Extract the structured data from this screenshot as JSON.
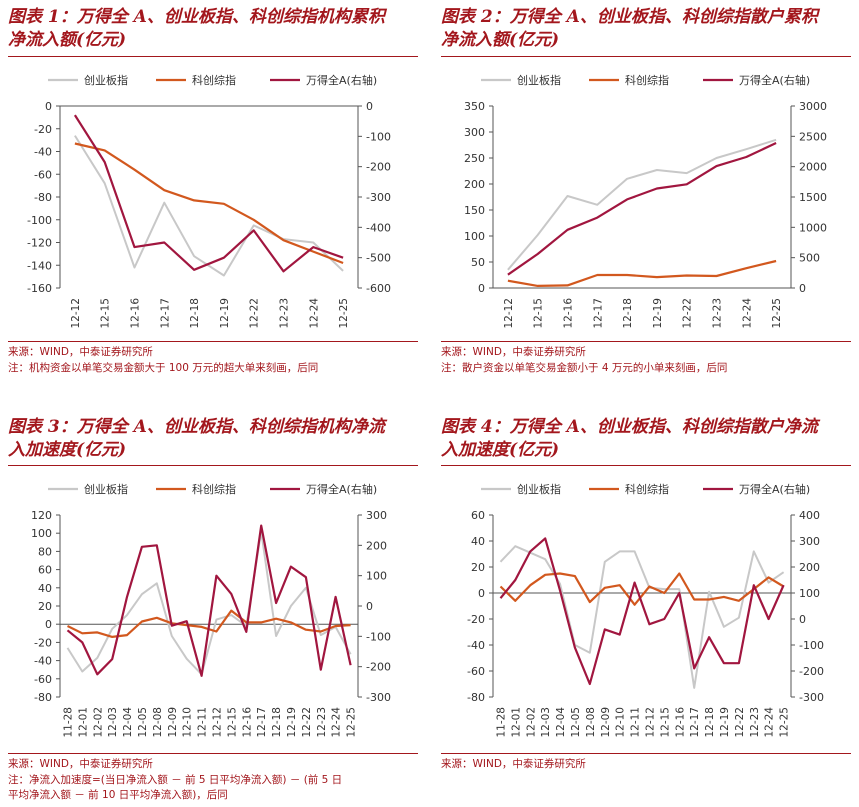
{
  "colors": {
    "accent": "#a3171d",
    "gray": "#c8c8c8",
    "orange": "#d2581e",
    "crimson": "#a1163f"
  },
  "panels": [
    {
      "title": "图表 1：万得全 A、创业板指、科创综指机构累积\n净流入额(亿元)",
      "source": "来源：WIND，中泰证券研究所",
      "note": "注：机构资金以单笔交易金额大于 100 万元的超大单来刻画，后同"
    },
    {
      "title": "图表 2：万得全 A、创业板指、科创综指散户累积\n净流入额(亿元)",
      "source": "来源：WIND，中泰证券研究所",
      "note": "注：散户资金以单笔交易金额小于 4 万元的小单来刻画，后同"
    },
    {
      "title": "图表 3：万得全 A、创业板指、科创综指机构净流\n入加速度(亿元)",
      "source": "来源：WIND，中泰证券研究所",
      "note": "注：净流入加速度=(当日净流入额 － 前 5 日平均净流入额) － (前 5 日\n平均净流入额 － 前 10 日平均净流入额)，后同"
    },
    {
      "title": "图表 4：万得全 A、创业板指、科创综指散户净流\n入加速度(亿元)",
      "source": "来源：WIND，中泰证券研究所",
      "note": ""
    }
  ],
  "chart_data": [
    {
      "type": "line",
      "x": [
        "12-12",
        "12-15",
        "12-16",
        "12-17",
        "12-18",
        "12-19",
        "12-22",
        "12-23",
        "12-24",
        "12-25"
      ],
      "ylim": [
        -160,
        0
      ],
      "yticks": [
        0,
        -20,
        -40,
        -60,
        -80,
        -100,
        -120,
        -140,
        -160
      ],
      "y2lim": [
        -600,
        0
      ],
      "y2ticks": [
        0,
        -100,
        -200,
        -300,
        -400,
        -500,
        -600
      ],
      "series": [
        {
          "name": "创业板指",
          "axis": "left",
          "values": [
            -26,
            -68,
            -142,
            -85,
            -132,
            -149,
            -105,
            -117,
            -120,
            -145
          ]
        },
        {
          "name": "科创综指",
          "axis": "left",
          "values": [
            -33,
            -39,
            -56,
            -74,
            -83,
            -86,
            -100,
            -118,
            -128,
            -138
          ]
        },
        {
          "name": "万得全A(右轴)",
          "axis": "right",
          "values": [
            -30,
            -185,
            -465,
            -450,
            -540,
            -500,
            -410,
            -545,
            -465,
            -500
          ]
        }
      ]
    },
    {
      "type": "line",
      "x": [
        "12-12",
        "12-15",
        "12-16",
        "12-17",
        "12-18",
        "12-19",
        "12-22",
        "12-23",
        "12-24",
        "12-25"
      ],
      "ylim": [
        0,
        350
      ],
      "yticks": [
        350,
        300,
        250,
        200,
        150,
        100,
        50,
        0
      ],
      "y2lim": [
        0,
        3000
      ],
      "y2ticks": [
        3000,
        2500,
        2000,
        1500,
        1000,
        500,
        0
      ],
      "series": [
        {
          "name": "创业板指",
          "axis": "left",
          "values": [
            35,
            102,
            177,
            160,
            210,
            227,
            221,
            250,
            267,
            285
          ]
        },
        {
          "name": "科创综指",
          "axis": "left",
          "values": [
            14,
            4,
            5,
            25,
            25,
            21,
            24,
            23,
            38,
            52
          ]
        },
        {
          "name": "万得全A(右轴)",
          "axis": "right",
          "values": [
            220,
            560,
            960,
            1160,
            1460,
            1640,
            1710,
            2010,
            2160,
            2390
          ]
        }
      ]
    },
    {
      "type": "line",
      "x": [
        "11-28",
        "12-01",
        "12-02",
        "12-03",
        "12-04",
        "12-05",
        "12-08",
        "12-09",
        "12-10",
        "12-11",
        "12-12",
        "12-15",
        "12-16",
        "12-17",
        "12-18",
        "12-19",
        "12-22",
        "12-23",
        "12-24",
        "12-25"
      ],
      "ylim": [
        -80,
        120
      ],
      "yticks": [
        120,
        100,
        80,
        60,
        40,
        20,
        0,
        -20,
        -40,
        -60,
        -80
      ],
      "y2lim": [
        -300,
        300
      ],
      "y2ticks": [
        300,
        200,
        100,
        0,
        -100,
        -200,
        -300
      ],
      "series": [
        {
          "name": "创业板指",
          "axis": "left",
          "values": [
            -26,
            -52,
            -37,
            -5,
            10,
            33,
            45,
            -13,
            -38,
            -55,
            5,
            10,
            -2,
            102,
            -13,
            20,
            40,
            -12,
            -3,
            -33
          ]
        },
        {
          "name": "科创综指",
          "axis": "left",
          "values": [
            -2,
            -10,
            -9,
            -14,
            -12,
            3,
            7,
            1,
            -1,
            -3,
            -8,
            15,
            2,
            2,
            6,
            2,
            -6,
            -8,
            -2,
            -1
          ]
        },
        {
          "name": "万得全A(右轴)",
          "axis": "right",
          "values": [
            -80,
            -120,
            -225,
            -175,
            30,
            195,
            200,
            -65,
            -50,
            -230,
            100,
            40,
            -85,
            265,
            10,
            130,
            95,
            -210,
            30,
            -195
          ]
        }
      ]
    },
    {
      "type": "line",
      "x": [
        "11-28",
        "12-01",
        "12-02",
        "12-03",
        "12-04",
        "12-05",
        "12-08",
        "12-09",
        "12-10",
        "12-11",
        "12-12",
        "12-15",
        "12-16",
        "12-17",
        "12-18",
        "12-19",
        "12-22",
        "12-23",
        "12-24",
        "12-25"
      ],
      "ylim": [
        -80,
        60
      ],
      "yticks": [
        60,
        40,
        20,
        0,
        -20,
        -40,
        -60,
        -80
      ],
      "y2lim": [
        -300,
        400
      ],
      "y2ticks": [
        400,
        300,
        200,
        100,
        0,
        -100,
        -200,
        -300
      ],
      "series": [
        {
          "name": "创业板指",
          "axis": "left",
          "values": [
            24,
            36,
            31,
            26,
            7,
            -40,
            -46,
            24,
            32,
            32,
            4,
            3,
            3,
            -73,
            1,
            -26,
            -19,
            32,
            8,
            16
          ]
        },
        {
          "name": "科创综指",
          "axis": "left",
          "values": [
            5,
            -6,
            6,
            14,
            15,
            13,
            -7,
            4,
            6,
            -9,
            5,
            0,
            15,
            -5,
            -5,
            -3,
            -6,
            3,
            12,
            5
          ]
        },
        {
          "name": "万得全A(右轴)",
          "axis": "right",
          "values": [
            80,
            150,
            260,
            310,
            110,
            -110,
            -250,
            -40,
            -60,
            140,
            -20,
            0,
            100,
            -190,
            -70,
            -170,
            -170,
            130,
            0,
            130
          ]
        }
      ]
    }
  ]
}
